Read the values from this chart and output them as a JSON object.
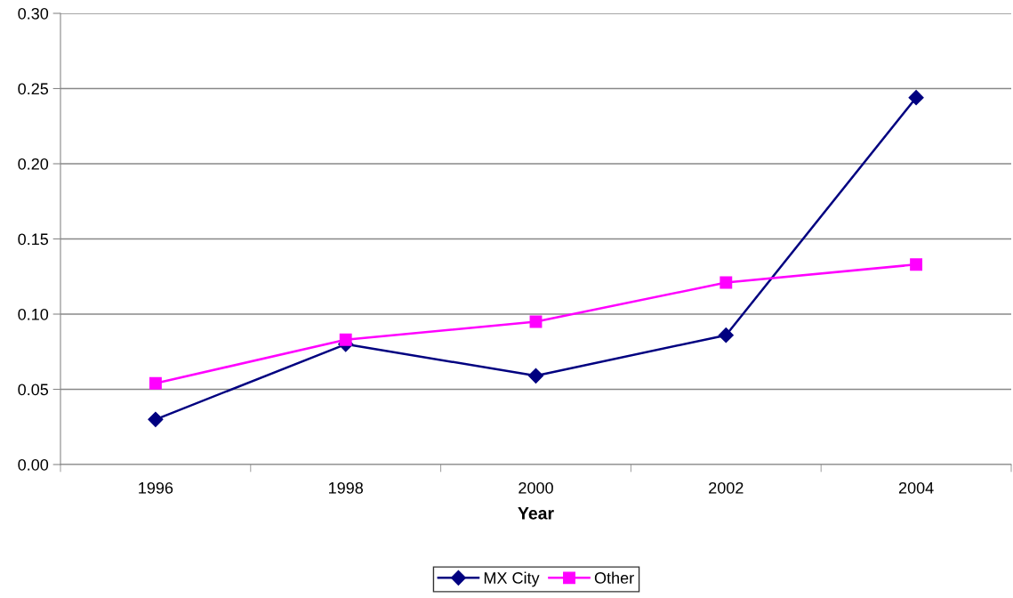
{
  "chart_data": {
    "type": "line",
    "xlabel": "Year",
    "categories": [
      "1996",
      "1998",
      "2000",
      "2002",
      "2004"
    ],
    "series": [
      {
        "name": "MX City",
        "color": "#000080",
        "marker": "diamond",
        "values": [
          0.03,
          0.08,
          0.059,
          0.086,
          0.244
        ]
      },
      {
        "name": "Other",
        "color": "#ff00ff",
        "marker": "square",
        "values": [
          0.054,
          0.083,
          0.095,
          0.121,
          0.133
        ]
      }
    ],
    "ylim": [
      0,
      0.3
    ],
    "yticks": [
      {
        "value": 0,
        "label": "0.00"
      },
      {
        "value": 0.05,
        "label": "0.05"
      },
      {
        "value": 0.1,
        "label": "0.10"
      },
      {
        "value": 0.15,
        "label": "0.15"
      },
      {
        "value": 0.2,
        "label": "0.20"
      },
      {
        "value": 0.25,
        "label": "0.25"
      },
      {
        "value": 0.3,
        "label": "0.30"
      }
    ],
    "grid": "y",
    "legend": "bottom",
    "line_style": "solid"
  }
}
